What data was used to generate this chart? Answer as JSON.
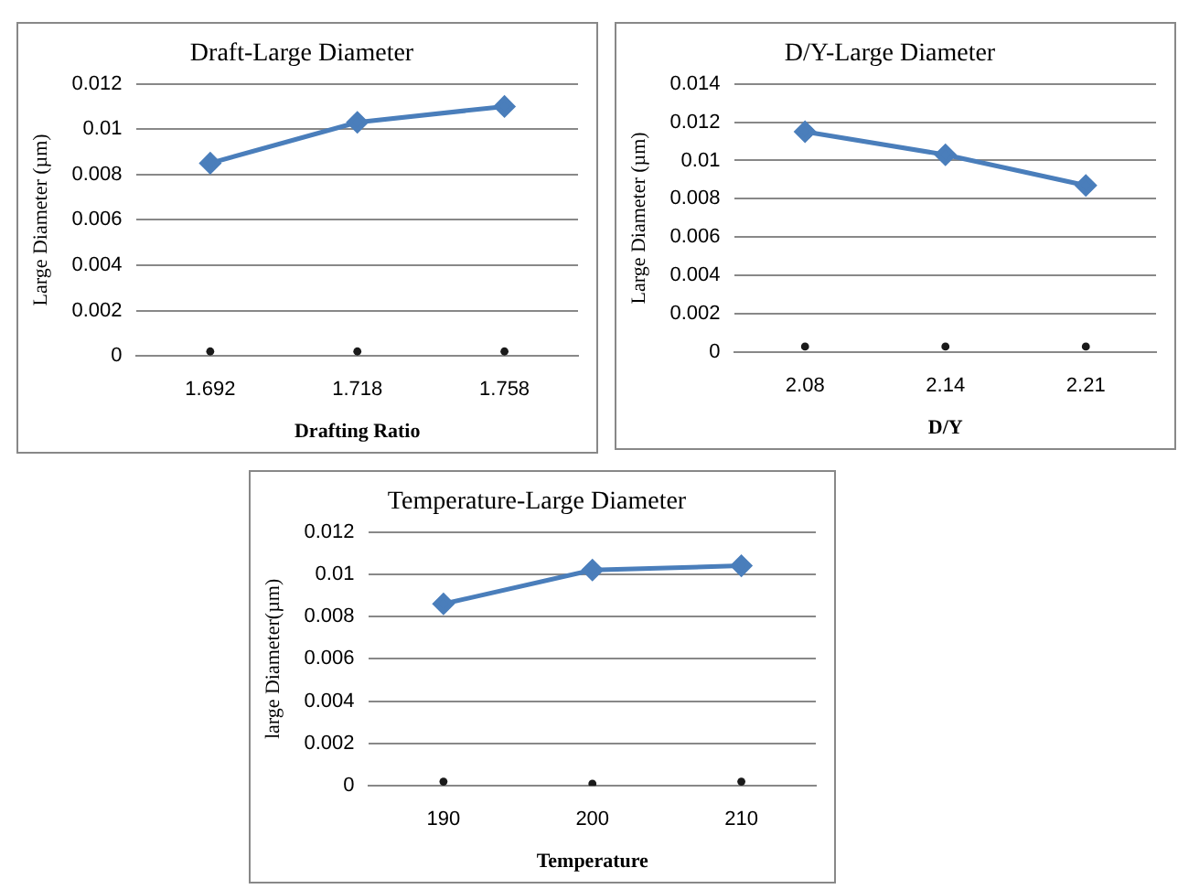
{
  "chart_data": [
    {
      "type": "line",
      "title": "Draft-Large Diameter",
      "xlabel": "Drafting Ratio",
      "ylabel": "Large Diameter (µm)",
      "categories": [
        "1.692",
        "1.718",
        "1.758"
      ],
      "ylim": [
        0,
        0.012
      ],
      "yticks": [
        0,
        0.002,
        0.004,
        0.006,
        0.008,
        0.01,
        0.012
      ],
      "grid": "y",
      "legend": false,
      "series": [
        {
          "color": "#4a7ebb",
          "values": [
            0.0085,
            0.0103,
            0.011
          ],
          "marker": "diamond"
        },
        {
          "type": "scatter",
          "color": "#1a1a1a",
          "x": [
            "1.692",
            "1.718",
            "1.758"
          ],
          "values": [
            0.0002,
            0.0002,
            0.0002
          ],
          "marker": "circle"
        }
      ]
    },
    {
      "type": "line",
      "title": "D/Y-Large Diameter",
      "xlabel": "D/Y",
      "ylabel": "Large Diameter (µm)",
      "categories": [
        "2.08",
        "2.14",
        "2.21"
      ],
      "ylim": [
        0,
        0.014
      ],
      "yticks": [
        0,
        0.002,
        0.004,
        0.006,
        0.008,
        0.01,
        0.012,
        0.014
      ],
      "grid": "y",
      "legend": false,
      "series": [
        {
          "color": "#4a7ebb",
          "values": [
            0.0115,
            0.0103,
            0.0087
          ],
          "marker": "diamond"
        },
        {
          "type": "scatter",
          "color": "#1a1a1a",
          "x": [
            "2.08",
            "2.14",
            "2.21"
          ],
          "values": [
            0.0003,
            0.0003,
            0.0003
          ],
          "marker": "circle"
        }
      ]
    },
    {
      "type": "line",
      "title": "Temperature-Large Diameter",
      "xlabel": "Temperature",
      "ylabel": "large Diameter(µm)",
      "categories": [
        "190",
        "200",
        "210"
      ],
      "ylim": [
        0,
        0.012
      ],
      "yticks": [
        0,
        0.002,
        0.004,
        0.006,
        0.008,
        0.01,
        0.012
      ],
      "grid": "y",
      "legend": false,
      "series": [
        {
          "color": "#4a7ebb",
          "values": [
            0.0086,
            0.0102,
            0.0104
          ],
          "marker": "diamond"
        },
        {
          "type": "scatter",
          "color": "#1a1a1a",
          "x": [
            "190",
            "200",
            "210"
          ],
          "values": [
            0.0002,
            0.0001,
            0.0002
          ],
          "marker": "circle"
        }
      ]
    }
  ]
}
